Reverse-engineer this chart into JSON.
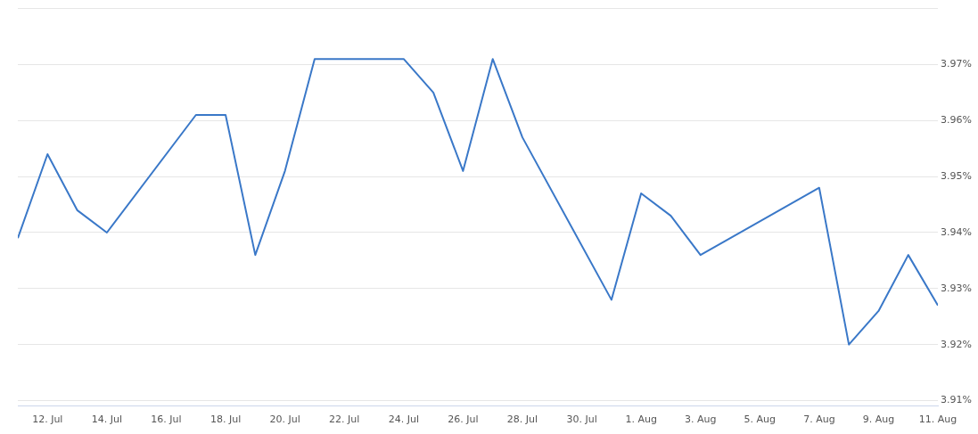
{
  "chart_data": {
    "type": "line",
    "x": [
      "--07-11",
      "--07-12",
      "--07-13",
      "--07-14",
      "--07-17",
      "--07-18",
      "--07-19",
      "--07-20",
      "--07-21",
      "--07-24",
      "--07-25",
      "--07-26",
      "--07-27",
      "--07-28",
      "--07-31",
      "--08-01",
      "--08-02",
      "--08-03",
      "--08-07",
      "--08-08",
      "--08-09",
      "--08-10",
      "--08-11"
    ],
    "series": [
      {
        "color": "#3a78c8",
        "values": [
          3.939,
          3.954,
          3.944,
          3.94,
          3.961,
          3.961,
          3.936,
          3.951,
          3.971,
          3.971,
          3.965,
          3.951,
          3.971,
          3.957,
          3.928,
          3.947,
          3.943,
          3.936,
          3.948,
          3.92,
          3.926,
          3.936,
          3.927
        ]
      }
    ],
    "xlim": [
      "--07-11",
      "--08-11"
    ],
    "xticks": [
      {
        "value": "--07-12",
        "label": "12. Jul"
      },
      {
        "value": "--07-14",
        "label": "14. Jul"
      },
      {
        "value": "--07-16",
        "label": "16. Jul"
      },
      {
        "value": "--07-18",
        "label": "18. Jul"
      },
      {
        "value": "--07-20",
        "label": "20. Jul"
      },
      {
        "value": "--07-22",
        "label": "22. Jul"
      },
      {
        "value": "--07-24",
        "label": "24. Jul"
      },
      {
        "value": "--07-26",
        "label": "26. Jul"
      },
      {
        "value": "--07-28",
        "label": "28. Jul"
      },
      {
        "value": "--07-30",
        "label": "30. Jul"
      },
      {
        "value": "--08-01",
        "label": "1. Aug"
      },
      {
        "value": "--08-03",
        "label": "3. Aug"
      },
      {
        "value": "--08-05",
        "label": "5. Aug"
      },
      {
        "value": "--08-07",
        "label": "7. Aug"
      },
      {
        "value": "--08-09",
        "label": "9. Aug"
      },
      {
        "value": "--08-11",
        "label": "11. Aug"
      }
    ],
    "ylim": [
      3.909,
      3.98
    ],
    "yticks": [
      {
        "value": 3.91,
        "label": "3.91%"
      },
      {
        "value": 3.92,
        "label": "3.92%"
      },
      {
        "value": 3.93,
        "label": "3.93%"
      },
      {
        "value": 3.94,
        "label": "3.94%"
      },
      {
        "value": 3.95,
        "label": "3.95%"
      },
      {
        "value": 3.96,
        "label": "3.96%"
      },
      {
        "value": 3.97,
        "label": "3.97%"
      },
      {
        "value": 3.98,
        "label": null
      }
    ],
    "grid": "y",
    "marker": "none",
    "line_style": "solid",
    "legend": false
  }
}
